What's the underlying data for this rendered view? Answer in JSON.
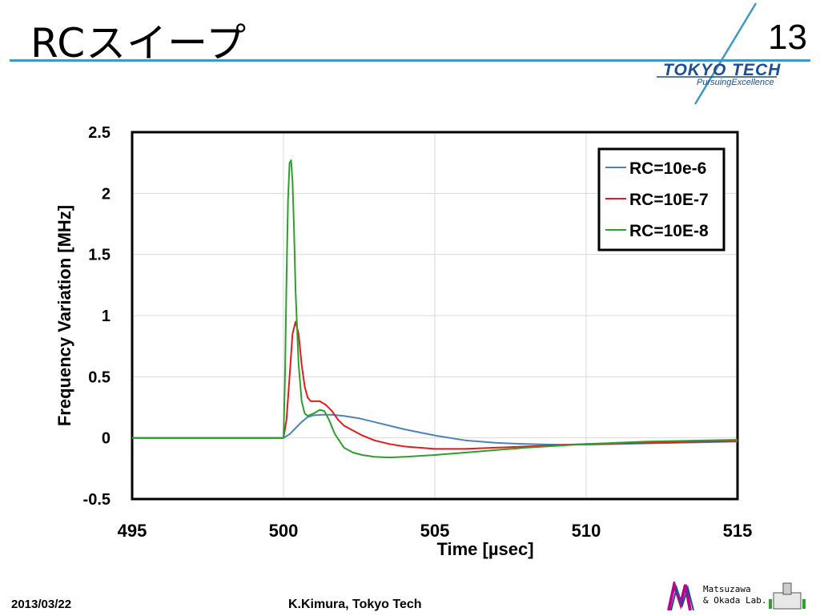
{
  "slide": {
    "title": "RCスイープ",
    "page_number": "13",
    "logo_text": "TOKYO TECH",
    "logo_tagline": "PursuingExcellence",
    "footer_date": "2013/03/22",
    "footer_credit": "K.Kimura, Tokyo Tech",
    "lab_line1": "Matsuzawa",
    "lab_line2": "& Okada Lab."
  },
  "chart_data": {
    "type": "line",
    "title": "",
    "xlabel": "Time [µsec]",
    "ylabel": "Frequency Variation [MHz]",
    "xlim": [
      495,
      515
    ],
    "ylim": [
      -0.5,
      2.5
    ],
    "x_ticks": [
      "495",
      "500",
      "505",
      "510",
      "515"
    ],
    "y_ticks": [
      "-0.5",
      "0",
      "0.5",
      "1",
      "1.5",
      "2",
      "2.5"
    ],
    "grid": true,
    "legend_position": "top-right",
    "series": [
      {
        "name": "RC=10e-6",
        "color": "#4f81bd",
        "x": [
          495,
          500,
          500.2,
          500.4,
          500.6,
          500.8,
          501,
          501.3,
          501.6,
          502,
          502.5,
          503,
          503.5,
          504,
          505,
          506,
          507,
          508,
          509,
          510,
          511,
          512,
          513,
          514,
          515
        ],
        "y": [
          0,
          0,
          0.03,
          0.08,
          0.13,
          0.17,
          0.185,
          0.19,
          0.19,
          0.18,
          0.16,
          0.13,
          0.1,
          0.07,
          0.02,
          -0.02,
          -0.04,
          -0.05,
          -0.055,
          -0.055,
          -0.05,
          -0.045,
          -0.04,
          -0.035,
          -0.03
        ]
      },
      {
        "name": "RC=10E-7",
        "color": "#e41a1c",
        "x": [
          495,
          500,
          500.1,
          500.2,
          500.3,
          500.4,
          500.5,
          500.6,
          500.7,
          500.8,
          500.9,
          501,
          501.2,
          501.4,
          501.6,
          501.8,
          502,
          502.3,
          502.6,
          503,
          503.5,
          504,
          505,
          506,
          507,
          508,
          509,
          510,
          511,
          512,
          513,
          514,
          515
        ],
        "y": [
          0,
          0,
          0.15,
          0.5,
          0.85,
          0.95,
          0.85,
          0.6,
          0.42,
          0.33,
          0.3,
          0.3,
          0.3,
          0.27,
          0.22,
          0.15,
          0.1,
          0.06,
          0.02,
          -0.02,
          -0.05,
          -0.07,
          -0.09,
          -0.09,
          -0.08,
          -0.07,
          -0.06,
          -0.05,
          -0.045,
          -0.04,
          -0.035,
          -0.03,
          -0.025
        ]
      },
      {
        "name": "RC=10E-8",
        "color": "#2ca02c",
        "x": [
          495,
          500,
          500.05,
          500.1,
          500.15,
          500.2,
          500.25,
          500.3,
          500.35,
          500.4,
          500.5,
          500.6,
          500.7,
          500.8,
          501,
          501.2,
          501.35,
          501.5,
          501.7,
          502,
          502.3,
          502.6,
          503,
          503.5,
          504,
          505,
          506,
          507,
          508,
          509,
          510,
          511,
          512,
          513,
          514,
          515
        ],
        "y": [
          0,
          0,
          0.5,
          1.3,
          1.95,
          2.25,
          2.27,
          2.1,
          1.7,
          1.2,
          0.6,
          0.3,
          0.2,
          0.18,
          0.2,
          0.23,
          0.22,
          0.15,
          0.03,
          -0.08,
          -0.12,
          -0.14,
          -0.155,
          -0.16,
          -0.155,
          -0.14,
          -0.12,
          -0.1,
          -0.08,
          -0.065,
          -0.05,
          -0.04,
          -0.03,
          -0.025,
          -0.02,
          -0.015
        ]
      }
    ]
  }
}
